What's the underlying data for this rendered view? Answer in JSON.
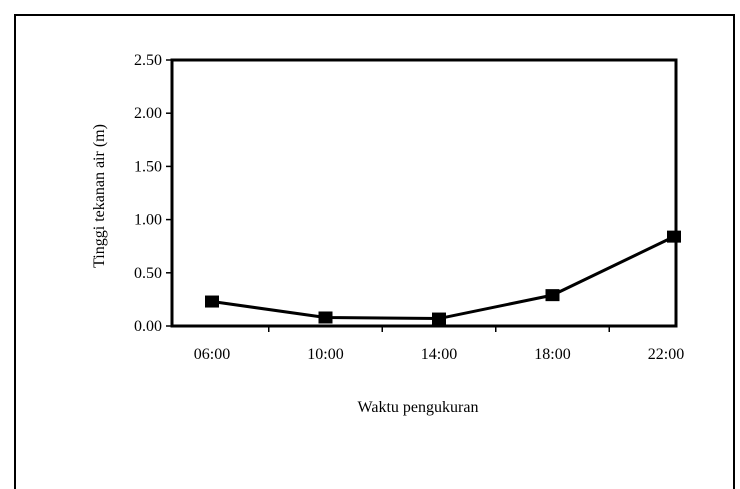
{
  "chart_data": {
    "type": "line",
    "categories": [
      "06:00",
      "10:00",
      "14:00",
      "18:00",
      "22:00"
    ],
    "values": [
      0.23,
      0.08,
      0.07,
      0.29,
      0.84
    ],
    "xlabel": "Waktu pengukuran",
    "ylabel": "Tinggi tekanan air (m)",
    "ylim": [
      0,
      2.5
    ],
    "yticks": [
      "0.00",
      "0.50",
      "1.00",
      "1.50",
      "2.00",
      "2.50"
    ],
    "marker": "square",
    "grid": false,
    "legend": false,
    "line_color": "#000000"
  }
}
